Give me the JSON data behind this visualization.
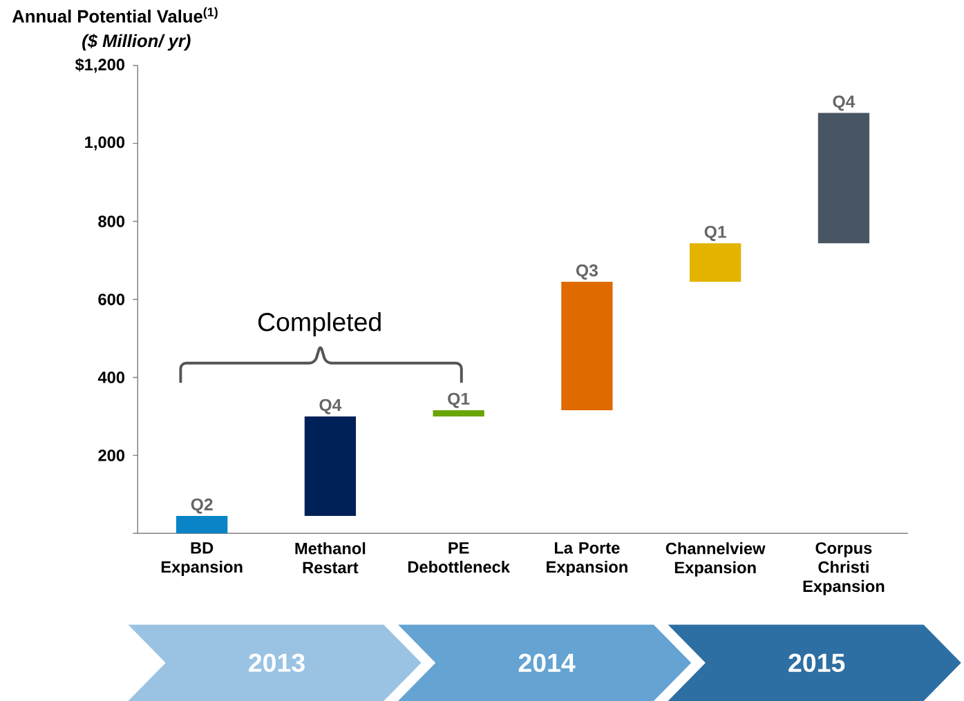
{
  "chart_data": {
    "type": "bar",
    "title": "Annual Potential Value$^{(1)}$",
    "ylabel": "($ Million/ yr)",
    "categories": [
      "BD Expansion",
      "Methanol Restart",
      "PE Debottleneck",
      "La Porte Expansion",
      "Channelview Expansion",
      "Corpus Christi Expansion"
    ],
    "base": [
      0,
      45,
      300,
      316,
      645,
      744
    ],
    "values": [
      45,
      255,
      16,
      329,
      99,
      334
    ],
    "colors": [
      "#0a84c6",
      "#002157",
      "#6aa500",
      "#e06a00",
      "#e3b400",
      "#485663"
    ],
    "value_labels": [
      "Q2",
      "Q4",
      "Q1",
      "Q3",
      "Q1",
      "Q4"
    ],
    "ylim": [
      0,
      1200
    ],
    "yticks": [
      {
        "value": 0,
        "label": null
      },
      200,
      400,
      600,
      800,
      {
        "value": 1000,
        "label": "1,000"
      },
      {
        "value": 1200,
        "label": "$1,200"
      }
    ],
    "annotations": [
      "Completed",
      "2013",
      "2014",
      "2015"
    ]
  }
}
